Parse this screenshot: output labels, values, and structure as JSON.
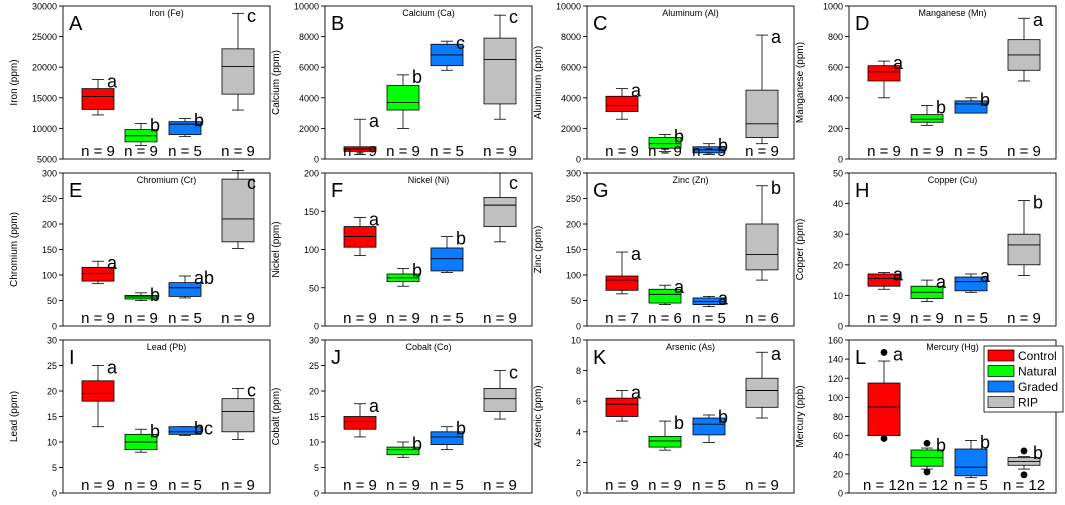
{
  "figure": {
    "legend": [
      {
        "name": "Control",
        "color": "#ff0000"
      },
      {
        "name": "Natural",
        "color": "#00ff00"
      },
      {
        "name": "Graded",
        "color": "#0b7bff"
      },
      {
        "name": "RIP",
        "color": "#c0c0c0"
      }
    ]
  },
  "chart_data": [
    {
      "type": "box",
      "panel": "A",
      "title": "Iron (Fe)",
      "ylabel": "Iron (ppm)",
      "ylim": [
        5000,
        30000
      ],
      "ticks": [
        5000,
        10000,
        15000,
        20000,
        25000,
        30000
      ],
      "tick_labels": [
        "5000",
        "10000",
        "15000",
        "20000",
        "25000",
        "30000"
      ],
      "groups": [
        {
          "name": "Control",
          "min": 12200,
          "q1": 13100,
          "median": 15200,
          "q3": 16500,
          "max": 18000,
          "letter": "a",
          "n": "n = 9"
        },
        {
          "name": "Natural",
          "min": 7200,
          "q1": 7800,
          "median": 8800,
          "q3": 9800,
          "max": 10800,
          "letter": "b",
          "n": "n = 9"
        },
        {
          "name": "Graded",
          "min": 8700,
          "q1": 9000,
          "median": 10700,
          "q3": 11100,
          "max": 11600,
          "letter": "b",
          "n": "n = 5"
        },
        {
          "name": "RIP",
          "min": 13000,
          "q1": 15600,
          "median": 20100,
          "q3": 23000,
          "max": 28800,
          "letter": "c",
          "n": "n = 9"
        }
      ]
    },
    {
      "type": "box",
      "panel": "B",
      "title": "Calcium (Ca)",
      "ylabel": "Calcium (ppm)",
      "ylim": [
        0,
        10000
      ],
      "ticks": [
        0,
        2000,
        4000,
        6000,
        8000,
        10000
      ],
      "tick_labels": [
        "0",
        "2000",
        "4000",
        "6000",
        "8000",
        "10000"
      ],
      "groups": [
        {
          "name": "Control",
          "min": 300,
          "q1": 500,
          "median": 650,
          "q3": 800,
          "max": 2600,
          "letter": "a",
          "n": "n = 9"
        },
        {
          "name": "Natural",
          "min": 2000,
          "q1": 3200,
          "median": 3700,
          "q3": 4800,
          "max": 5500,
          "letter": "b",
          "n": "n = 9"
        },
        {
          "name": "Graded",
          "min": 5800,
          "q1": 6100,
          "median": 6800,
          "q3": 7500,
          "max": 7700,
          "letter": "c",
          "n": "n = 5"
        },
        {
          "name": "RIP",
          "min": 2600,
          "q1": 3600,
          "median": 6500,
          "q3": 7900,
          "max": 9400,
          "letter": "c",
          "n": "n = 9"
        }
      ]
    },
    {
      "type": "box",
      "panel": "C",
      "title": "Aluminum (Al)",
      "ylabel": "Aluminum (ppm)",
      "ylim": [
        0,
        10000
      ],
      "ticks": [
        0,
        2000,
        4000,
        6000,
        8000,
        10000
      ],
      "tick_labels": [
        "0",
        "2000",
        "4000",
        "6000",
        "8000",
        "10000"
      ],
      "groups": [
        {
          "name": "Control",
          "min": 2600,
          "q1": 3100,
          "median": 3500,
          "q3": 4100,
          "max": 4600,
          "letter": "a",
          "n": "n = 9"
        },
        {
          "name": "Natural",
          "min": 500,
          "q1": 700,
          "median": 1000,
          "q3": 1400,
          "max": 1600,
          "letter": "b",
          "n": "n = 9"
        },
        {
          "name": "Graded",
          "min": 300,
          "q1": 400,
          "median": 600,
          "q3": 800,
          "max": 1000,
          "letter": "b",
          "n": "n = 5"
        },
        {
          "name": "RIP",
          "min": 1000,
          "q1": 1400,
          "median": 2300,
          "q3": 4500,
          "max": 8100,
          "letter": "a",
          "n": "n = 9"
        }
      ]
    },
    {
      "type": "box",
      "panel": "D",
      "title": "Manganese (Mn)",
      "ylabel": "Manganese (ppm)",
      "ylim": [
        0,
        1000
      ],
      "ticks": [
        0,
        200,
        400,
        600,
        800,
        1000
      ],
      "tick_labels": [
        "0",
        "200",
        "400",
        "600",
        "800",
        "1000"
      ],
      "groups": [
        {
          "name": "Control",
          "min": 400,
          "q1": 510,
          "median": 570,
          "q3": 610,
          "max": 640,
          "letter": "a",
          "n": "n = 9"
        },
        {
          "name": "Natural",
          "min": 220,
          "q1": 240,
          "median": 260,
          "q3": 290,
          "max": 350,
          "letter": "b",
          "n": "n = 9"
        },
        {
          "name": "Graded",
          "min": 300,
          "q1": 300,
          "median": 360,
          "q3": 380,
          "max": 400,
          "letter": "b",
          "n": "n = 5"
        },
        {
          "name": "RIP",
          "min": 510,
          "q1": 580,
          "median": 680,
          "q3": 780,
          "max": 920,
          "letter": "a",
          "n": "n = 9"
        }
      ]
    },
    {
      "type": "box",
      "panel": "E",
      "title": "Chromium (Cr)",
      "ylabel": "Chromium (ppm)",
      "ylim": [
        0,
        300
      ],
      "ticks": [
        0,
        50,
        100,
        150,
        200,
        250,
        300
      ],
      "tick_labels": [
        "0",
        "50",
        "100",
        "150",
        "200",
        "250",
        "300"
      ],
      "groups": [
        {
          "name": "Control",
          "min": 83,
          "q1": 88,
          "median": 103,
          "q3": 115,
          "max": 127,
          "letter": "a",
          "n": "n = 9"
        },
        {
          "name": "Natural",
          "min": 50,
          "q1": 53,
          "median": 57,
          "q3": 60,
          "max": 65,
          "letter": "b",
          "n": "n = 9"
        },
        {
          "name": "Graded",
          "min": 55,
          "q1": 58,
          "median": 75,
          "q3": 85,
          "max": 98,
          "letter": "ab",
          "n": "n = 5"
        },
        {
          "name": "RIP",
          "min": 152,
          "q1": 165,
          "median": 210,
          "q3": 288,
          "max": 305,
          "letter": "c",
          "n": "n = 9"
        }
      ]
    },
    {
      "type": "box",
      "panel": "F",
      "title": "Nickel (Ni)",
      "ylabel": "Nickel (ppm)",
      "ylim": [
        0,
        200
      ],
      "ticks": [
        0,
        50,
        100,
        150,
        200
      ],
      "tick_labels": [
        "0",
        "50",
        "100",
        "150",
        "200"
      ],
      "groups": [
        {
          "name": "Control",
          "min": 92,
          "q1": 103,
          "median": 117,
          "q3": 130,
          "max": 142,
          "letter": "a",
          "n": "n = 9"
        },
        {
          "name": "Natural",
          "min": 52,
          "q1": 58,
          "median": 63,
          "q3": 68,
          "max": 75,
          "letter": "b",
          "n": "n = 9"
        },
        {
          "name": "Graded",
          "min": 70,
          "q1": 72,
          "median": 88,
          "q3": 102,
          "max": 117,
          "letter": "b",
          "n": "n = 5"
        },
        {
          "name": "RIP",
          "min": 110,
          "q1": 130,
          "median": 158,
          "q3": 168,
          "max": 200,
          "letter": "c",
          "n": "n = 9"
        }
      ]
    },
    {
      "type": "box",
      "panel": "G",
      "title": "Zinc (Zn)",
      "ylabel": "Zinc (ppm)",
      "ylim": [
        0,
        300
      ],
      "ticks": [
        0,
        50,
        100,
        150,
        200,
        250,
        300
      ],
      "tick_labels": [
        "0",
        "50",
        "100",
        "150",
        "200",
        "250",
        "300"
      ],
      "groups": [
        {
          "name": "Control",
          "min": 63,
          "q1": 70,
          "median": 90,
          "q3": 98,
          "max": 145,
          "letter": "a",
          "n": "n = 7"
        },
        {
          "name": "Natural",
          "min": 42,
          "q1": 45,
          "median": 62,
          "q3": 72,
          "max": 80,
          "letter": "a",
          "n": "n = 6"
        },
        {
          "name": "Graded",
          "min": 38,
          "q1": 42,
          "median": 48,
          "q3": 55,
          "max": 58,
          "letter": "a",
          "n": "n = 5"
        },
        {
          "name": "RIP",
          "min": 90,
          "q1": 110,
          "median": 140,
          "q3": 200,
          "max": 275,
          "letter": "b",
          "n": "n = 6"
        }
      ]
    },
    {
      "type": "box",
      "panel": "H",
      "title": "Copper (Cu)",
      "ylabel": "Copper (ppm)",
      "ylim": [
        0,
        50
      ],
      "ticks": [
        0,
        10,
        20,
        30,
        40,
        50
      ],
      "tick_labels": [
        "0",
        "10",
        "20",
        "30",
        "40",
        "50"
      ],
      "groups": [
        {
          "name": "Control",
          "min": 12,
          "q1": 13,
          "median": 15.5,
          "q3": 17,
          "max": 17.5,
          "letter": "a",
          "n": "n = 9"
        },
        {
          "name": "Natural",
          "min": 8,
          "q1": 9,
          "median": 11,
          "q3": 13,
          "max": 15,
          "letter": "a",
          "n": "n = 9"
        },
        {
          "name": "Graded",
          "min": 11,
          "q1": 11.5,
          "median": 14.5,
          "q3": 16,
          "max": 17,
          "letter": "a",
          "n": "n = 5"
        },
        {
          "name": "RIP",
          "min": 16.5,
          "q1": 20,
          "median": 26.5,
          "q3": 30,
          "max": 41,
          "letter": "b",
          "n": "n = 9"
        }
      ]
    },
    {
      "type": "box",
      "panel": "I",
      "title": "Lead (Pb)",
      "ylabel": "Lead (ppm)",
      "ylim": [
        0,
        30
      ],
      "ticks": [
        0,
        5,
        10,
        15,
        20,
        25,
        30
      ],
      "tick_labels": [
        "0",
        "5",
        "10",
        "15",
        "20",
        "25",
        "30"
      ],
      "groups": [
        {
          "name": "Control",
          "min": 13,
          "q1": 18,
          "median": 19.5,
          "q3": 22,
          "max": 25,
          "letter": "a",
          "n": "n = 9"
        },
        {
          "name": "Natural",
          "min": 8,
          "q1": 8.5,
          "median": 10,
          "q3": 11.5,
          "max": 12.5,
          "letter": "b",
          "n": "n = 9"
        },
        {
          "name": "Graded",
          "min": 11.3,
          "q1": 11.5,
          "median": 12,
          "q3": 13,
          "max": 13,
          "letter": "bc",
          "n": "n = 5"
        },
        {
          "name": "RIP",
          "min": 10.5,
          "q1": 12,
          "median": 16,
          "q3": 18.5,
          "max": 20.5,
          "letter": "c",
          "n": "n = 9"
        }
      ]
    },
    {
      "type": "box",
      "panel": "J",
      "title": "Cobalt (Co)",
      "ylabel": "Cobalt (ppm)",
      "ylim": [
        0,
        30
      ],
      "ticks": [
        0,
        5,
        10,
        15,
        20,
        25,
        30
      ],
      "tick_labels": [
        "0",
        "5",
        "10",
        "15",
        "20",
        "25",
        "30"
      ],
      "groups": [
        {
          "name": "Control",
          "min": 11,
          "q1": 12.5,
          "median": 14,
          "q3": 15,
          "max": 17.5,
          "letter": "a",
          "n": "n = 9"
        },
        {
          "name": "Natural",
          "min": 7,
          "q1": 7.5,
          "median": 8.5,
          "q3": 9,
          "max": 10,
          "letter": "b",
          "n": "n = 9"
        },
        {
          "name": "Graded",
          "min": 8.5,
          "q1": 9.5,
          "median": 11,
          "q3": 12,
          "max": 13,
          "letter": "b",
          "n": "n = 5"
        },
        {
          "name": "RIP",
          "min": 14.5,
          "q1": 16,
          "median": 18.5,
          "q3": 20.5,
          "max": 24,
          "letter": "c",
          "n": "n = 9"
        }
      ]
    },
    {
      "type": "box",
      "panel": "K",
      "title": "Arsenic (As)",
      "ylabel": "Arsenic (ppm)",
      "ylim": [
        0,
        10
      ],
      "ticks": [
        0,
        2,
        4,
        6,
        8,
        10
      ],
      "tick_labels": [
        "0",
        "2",
        "4",
        "6",
        "8",
        "10"
      ],
      "groups": [
        {
          "name": "Control",
          "min": 4.7,
          "q1": 5,
          "median": 5.8,
          "q3": 6.2,
          "max": 6.7,
          "letter": "a",
          "n": "n = 9"
        },
        {
          "name": "Natural",
          "min": 2.8,
          "q1": 3,
          "median": 3.4,
          "q3": 3.7,
          "max": 4.7,
          "letter": "b",
          "n": "n = 9"
        },
        {
          "name": "Graded",
          "min": 3.3,
          "q1": 3.8,
          "median": 4.5,
          "q3": 4.9,
          "max": 5.1,
          "letter": "b",
          "n": "n = 5"
        },
        {
          "name": "RIP",
          "min": 4.9,
          "q1": 5.6,
          "median": 6.7,
          "q3": 7.5,
          "max": 9.2,
          "letter": "a",
          "n": "n = 9"
        }
      ]
    },
    {
      "type": "box",
      "panel": "L",
      "title": "Mercury (Hg)",
      "ylabel": "Mercury (ppb)",
      "ylim": [
        0,
        160
      ],
      "ticks": [
        0,
        20,
        40,
        60,
        80,
        100,
        120,
        140,
        160
      ],
      "tick_labels": [
        "0",
        "20",
        "40",
        "60",
        "80",
        "100",
        "120",
        "140",
        "160"
      ],
      "groups": [
        {
          "name": "Control",
          "min": 60,
          "q1": 60,
          "median": 90,
          "q3": 115,
          "max": 138,
          "outliers": [
            147,
            57
          ],
          "letter": "a",
          "n": "n = 12"
        },
        {
          "name": "Natural",
          "min": 25,
          "q1": 28,
          "median": 37,
          "q3": 45,
          "max": 47,
          "outliers": [
            52,
            22
          ],
          "letter": "b",
          "n": "n = 12"
        },
        {
          "name": "Graded",
          "min": 16,
          "q1": 18,
          "median": 27,
          "q3": 46,
          "max": 55,
          "letter": "b",
          "n": "n = 5"
        },
        {
          "name": "RIP",
          "min": 25,
          "q1": 29,
          "median": 33,
          "q3": 37,
          "max": 38,
          "outliers": [
            44,
            19
          ],
          "letter": "b",
          "n": "n = 12"
        }
      ]
    }
  ]
}
